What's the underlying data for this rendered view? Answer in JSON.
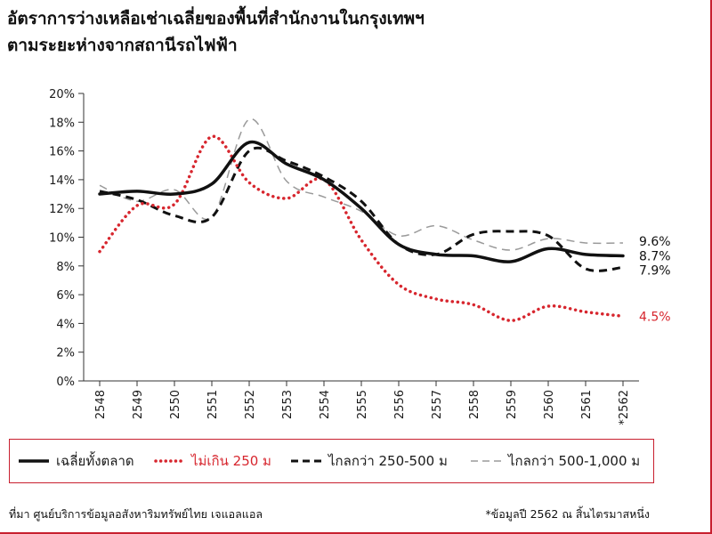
{
  "title_lines": [
    "อัตราการว่างเหลือเช่าเฉลี่ยของพื้นที่สำนักงานในกรุงเทพฯ",
    "ตามระยะห่างจากสถานีรถไฟฟ้า"
  ],
  "footer": {
    "source": "ที่มา ศูนย์บริการข้อมูลอสังหาริมทรัพย์ไทย เจแอลแอล",
    "note": "*ข้อมูลปี 2562 ณ สิ้นไตรมาสหนึ่ง"
  },
  "chart_data": {
    "type": "line",
    "title": "อัตราการว่างเหลือเช่าเฉลี่ยของพื้นที่สำนักงานในกรุงเทพฯ ตามระยะห่างจากสถานีรถไฟฟ้า",
    "categories": [
      "2548",
      "2549",
      "2550",
      "2551",
      "2552",
      "2553",
      "2554",
      "2555",
      "2556",
      "2557",
      "2558",
      "2559",
      "2560",
      "2561",
      "*2562"
    ],
    "ylim": [
      0,
      20
    ],
    "yticks": [
      "0%",
      "2%",
      "4%",
      "6%",
      "8%",
      "10%",
      "12%",
      "14%",
      "16%",
      "18%",
      "20%"
    ],
    "xlabel": "",
    "ylabel": "",
    "grid": false,
    "legend_position": "bottom",
    "series": [
      {
        "name": "เฉลี่ยทั้งตลาด",
        "style": "solid-thick",
        "color": "#111111",
        "values": [
          13.0,
          13.2,
          13.0,
          13.7,
          16.6,
          15.1,
          14.0,
          12.0,
          9.5,
          8.8,
          8.7,
          8.3,
          9.2,
          8.8,
          8.7
        ],
        "end_label": "8.7%"
      },
      {
        "name": "ไม่เกิน 250 ม",
        "style": "dotted",
        "color": "#d7262e",
        "values": [
          9.0,
          12.2,
          12.3,
          17.0,
          13.8,
          12.7,
          14.0,
          9.8,
          6.7,
          5.7,
          5.3,
          4.2,
          5.2,
          4.8,
          4.5
        ],
        "end_label": "4.5%"
      },
      {
        "name": "ไกลกว่า 250-500 ม",
        "style": "dashed-thick",
        "color": "#111111",
        "values": [
          13.2,
          12.6,
          11.5,
          11.4,
          16.0,
          15.3,
          14.2,
          12.5,
          9.5,
          8.8,
          10.2,
          10.4,
          10.1,
          7.8,
          7.9
        ],
        "end_label": "7.9%"
      },
      {
        "name": "ไกลกว่า 500-1,000 ม",
        "style": "dashed-thin",
        "color": "#9a9a9a",
        "values": [
          13.6,
          12.5,
          13.3,
          11.4,
          18.2,
          13.9,
          12.8,
          11.8,
          10.1,
          10.8,
          9.8,
          9.1,
          9.9,
          9.6,
          9.6
        ],
        "end_label": "9.6%"
      }
    ]
  }
}
